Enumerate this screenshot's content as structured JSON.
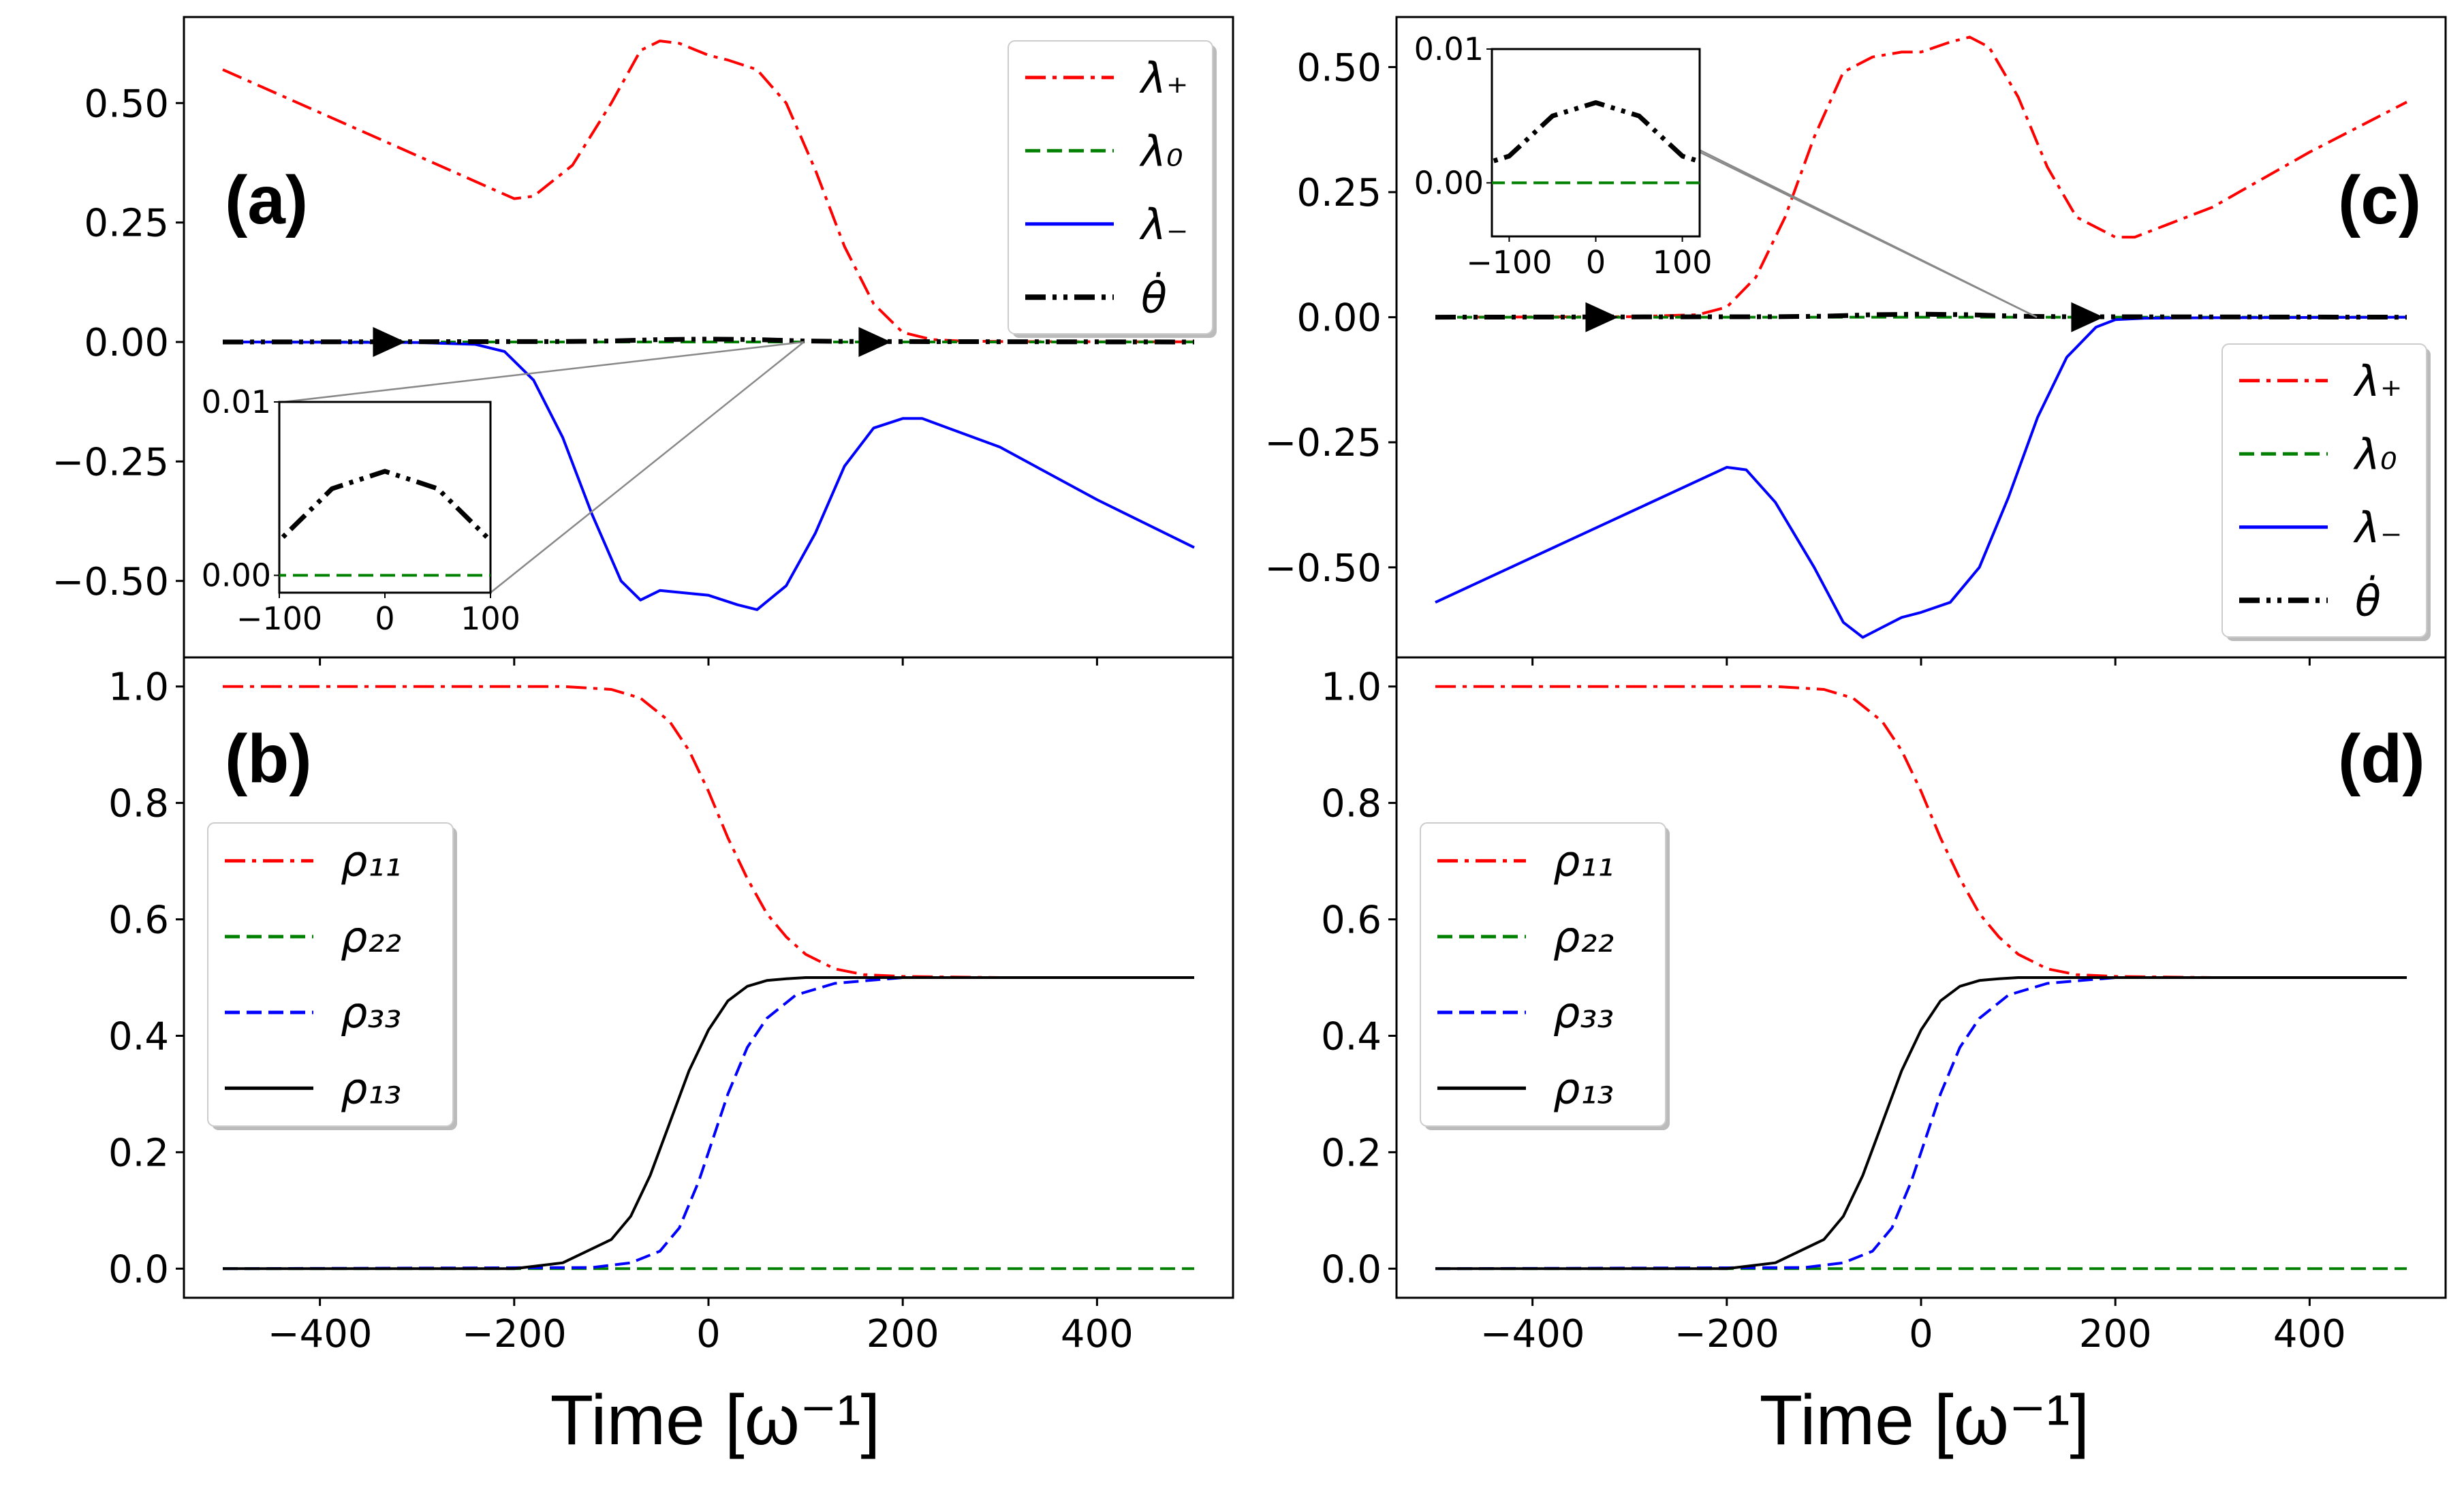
{
  "panels": {
    "a": {
      "label": "(a)"
    },
    "b": {
      "label": "(b)"
    },
    "c": {
      "label": "(c)"
    },
    "d": {
      "label": "(d)"
    }
  },
  "xlabel": "Time [ω⁻¹]",
  "colors": {
    "red": "#ff0000",
    "green": "#008000",
    "blue": "#0000ff",
    "black": "#000000"
  },
  "chart_data": [
    {
      "id": "a",
      "type": "line",
      "xlim": [
        -540,
        540
      ],
      "ylim": [
        -0.66,
        0.68
      ],
      "yticks": [
        "0.50",
        "0.25",
        "0.00",
        "−0.25",
        "−0.50"
      ],
      "ytick_values": [
        0.5,
        0.25,
        0,
        -0.25,
        -0.5
      ],
      "xticks": [
        -400,
        -200,
        0,
        200,
        400
      ],
      "legend": {
        "placement": "top-right"
      },
      "series": [
        {
          "name": "λ₊",
          "style": "dashdot",
          "color": "#ff0000",
          "x": [
            -500,
            -400,
            -300,
            -200,
            -180,
            -140,
            -100,
            -70,
            -50,
            -30,
            0,
            20,
            50,
            80,
            110,
            140,
            170,
            200,
            230,
            260,
            300,
            400,
            500
          ],
          "y": [
            0.57,
            0.48,
            0.39,
            0.3,
            0.305,
            0.37,
            0.5,
            0.61,
            0.63,
            0.625,
            0.6,
            0.59,
            0.57,
            0.5,
            0.36,
            0.2,
            0.08,
            0.02,
            0.005,
            0.002,
            0.001,
            0.0005,
            0.0003
          ]
        },
        {
          "name": "λ₀",
          "style": "dashed",
          "color": "#008000",
          "x": [
            -500,
            500
          ],
          "y": [
            0,
            0
          ]
        },
        {
          "name": "λ₋",
          "style": "solid",
          "color": "#0000ff",
          "x": [
            -500,
            -300,
            -240,
            -210,
            -180,
            -150,
            -120,
            -90,
            -70,
            -50,
            0,
            30,
            50,
            80,
            110,
            140,
            170,
            200,
            220,
            300,
            400,
            500
          ],
          "y": [
            0,
            -0.001,
            -0.005,
            -0.02,
            -0.08,
            -0.2,
            -0.36,
            -0.5,
            -0.54,
            -0.52,
            -0.53,
            -0.55,
            -0.56,
            -0.51,
            -0.4,
            -0.26,
            -0.18,
            -0.16,
            -0.16,
            -0.22,
            -0.33,
            -0.43
          ]
        },
        {
          "name": "θ̇",
          "style": "dashdotdot",
          "color": "#000000",
          "x": [
            -500,
            -150,
            -100,
            -50,
            0,
            50,
            100,
            150,
            500
          ],
          "y": [
            0,
            0.001,
            0.002,
            0.005,
            0.006,
            0.005,
            0.002,
            0.001,
            0
          ]
        }
      ],
      "arrows_x": [
        -330,
        170
      ],
      "inset": {
        "xlim": [
          -100,
          100
        ],
        "ylim": [
          -0.001,
          0.01
        ],
        "xticks": [
          "−100",
          "0",
          "100"
        ],
        "yticks": [
          "0.01",
          "0.00"
        ],
        "ytick_values": [
          0.01,
          0
        ]
      }
    },
    {
      "id": "b",
      "type": "line",
      "xlim": [
        -540,
        540
      ],
      "ylim": [
        -0.05,
        1.05
      ],
      "yticks": [
        "1.0",
        "0.8",
        "0.6",
        "0.4",
        "0.2",
        "0.0"
      ],
      "ytick_values": [
        1.0,
        0.8,
        0.6,
        0.4,
        0.2,
        0.0
      ],
      "xticks": [
        "−400",
        "−200",
        "0",
        "200",
        "400"
      ],
      "xtick_values": [
        -400,
        -200,
        0,
        200,
        400
      ],
      "legend": {
        "placement": "center-left"
      },
      "series": [
        {
          "name": "ρ₁₁",
          "style": "dashdot",
          "color": "#ff0000",
          "x": [
            -500,
            -150,
            -100,
            -70,
            -40,
            -20,
            0,
            20,
            40,
            60,
            80,
            100,
            130,
            160,
            200,
            300,
            500
          ],
          "y": [
            1.0,
            1.0,
            0.995,
            0.98,
            0.94,
            0.89,
            0.82,
            0.74,
            0.67,
            0.61,
            0.57,
            0.54,
            0.515,
            0.505,
            0.502,
            0.5,
            0.5
          ]
        },
        {
          "name": "ρ₂₂",
          "style": "dashed",
          "color": "#008000",
          "x": [
            -500,
            500
          ],
          "y": [
            0,
            0
          ]
        },
        {
          "name": "ρ₃₃",
          "style": "dashed",
          "color": "#0000ff",
          "x": [
            -500,
            -120,
            -80,
            -50,
            -30,
            -10,
            0,
            20,
            40,
            60,
            90,
            130,
            200,
            300,
            500
          ],
          "y": [
            0,
            0.002,
            0.01,
            0.03,
            0.07,
            0.15,
            0.2,
            0.3,
            0.38,
            0.43,
            0.47,
            0.49,
            0.5,
            0.5,
            0.5
          ]
        },
        {
          "name": "ρ₁₃",
          "style": "solid",
          "color": "#000000",
          "x": [
            -500,
            -200,
            -150,
            -100,
            -80,
            -60,
            -40,
            -20,
            0,
            20,
            40,
            60,
            80,
            100,
            150,
            200,
            300,
            500
          ],
          "y": [
            0,
            0,
            0.01,
            0.05,
            0.09,
            0.16,
            0.25,
            0.34,
            0.41,
            0.46,
            0.485,
            0.495,
            0.498,
            0.5,
            0.5,
            0.5,
            0.5,
            0.5
          ]
        }
      ]
    },
    {
      "id": "c",
      "type": "line",
      "xlim": [
        -540,
        540
      ],
      "ylim": [
        -0.68,
        0.6
      ],
      "yticks": [
        "0.50",
        "0.25",
        "0.00",
        "−0.25",
        "−0.50"
      ],
      "ytick_values": [
        0.5,
        0.25,
        0,
        -0.25,
        -0.5
      ],
      "xticks": [
        -400,
        -200,
        0,
        200,
        400
      ],
      "legend": {
        "placement": "bottom-right"
      },
      "series": [
        {
          "name": "λ₊",
          "style": "dashdot",
          "color": "#ff0000",
          "x": [
            -500,
            -300,
            -230,
            -200,
            -170,
            -140,
            -110,
            -80,
            -50,
            -20,
            0,
            30,
            50,
            70,
            100,
            130,
            160,
            200,
            220,
            300,
            400,
            500
          ],
          "y": [
            0,
            0.001,
            0.005,
            0.02,
            0.08,
            0.2,
            0.36,
            0.49,
            0.52,
            0.53,
            0.53,
            0.55,
            0.56,
            0.54,
            0.44,
            0.3,
            0.2,
            0.16,
            0.16,
            0.22,
            0.33,
            0.43
          ]
        },
        {
          "name": "λ₀",
          "style": "dashed",
          "color": "#008000",
          "x": [
            -500,
            500
          ],
          "y": [
            0,
            0
          ]
        },
        {
          "name": "λ₋",
          "style": "solid",
          "color": "#0000ff",
          "x": [
            -500,
            -400,
            -300,
            -200,
            -180,
            -150,
            -110,
            -80,
            -60,
            -40,
            -20,
            0,
            30,
            60,
            90,
            120,
            150,
            180,
            200,
            230,
            300,
            500
          ],
          "y": [
            -0.57,
            -0.48,
            -0.39,
            -0.3,
            -0.305,
            -0.37,
            -0.5,
            -0.61,
            -0.64,
            -0.62,
            -0.6,
            -0.59,
            -0.57,
            -0.5,
            -0.36,
            -0.2,
            -0.08,
            -0.02,
            -0.005,
            -0.002,
            -0.001,
            0
          ]
        },
        {
          "name": "θ̇",
          "style": "dashdotdot",
          "color": "#000000",
          "x": [
            -500,
            -150,
            -100,
            -50,
            0,
            50,
            100,
            150,
            500
          ],
          "y": [
            0,
            0.001,
            0.002,
            0.005,
            0.006,
            0.005,
            0.002,
            0.001,
            0
          ]
        }
      ],
      "arrows_x": [
        -330,
        170
      ],
      "inset": {
        "xlim": [
          -120,
          120
        ],
        "ylim": [
          -0.004,
          0.01
        ],
        "xticks": [
          "−100",
          "0",
          "100"
        ],
        "yticks": [
          "0.01",
          "0.00"
        ],
        "ytick_values": [
          0.01,
          0
        ]
      }
    },
    {
      "id": "d",
      "type": "line",
      "xlim": [
        -540,
        540
      ],
      "ylim": [
        -0.05,
        1.05
      ],
      "yticks": [
        "1.0",
        "0.8",
        "0.6",
        "0.4",
        "0.2",
        "0.0"
      ],
      "ytick_values": [
        1.0,
        0.8,
        0.6,
        0.4,
        0.2,
        0.0
      ],
      "xticks": [
        "−400",
        "−200",
        "0",
        "200",
        "400"
      ],
      "xtick_values": [
        -400,
        -200,
        0,
        200,
        400
      ],
      "legend": {
        "placement": "center-left"
      },
      "series": [
        {
          "name": "ρ₁₁",
          "style": "dashdot",
          "color": "#ff0000",
          "x": [
            -500,
            -150,
            -100,
            -70,
            -40,
            -20,
            0,
            20,
            40,
            60,
            80,
            100,
            130,
            160,
            200,
            300,
            500
          ],
          "y": [
            1.0,
            1.0,
            0.995,
            0.98,
            0.94,
            0.89,
            0.82,
            0.74,
            0.67,
            0.61,
            0.57,
            0.54,
            0.515,
            0.505,
            0.502,
            0.5,
            0.5
          ]
        },
        {
          "name": "ρ₂₂",
          "style": "dashed",
          "color": "#008000",
          "x": [
            -500,
            500
          ],
          "y": [
            0,
            0
          ]
        },
        {
          "name": "ρ₃₃",
          "style": "dashed",
          "color": "#0000ff",
          "x": [
            -500,
            -120,
            -80,
            -50,
            -30,
            -10,
            0,
            20,
            40,
            60,
            90,
            130,
            200,
            300,
            500
          ],
          "y": [
            0,
            0.002,
            0.01,
            0.03,
            0.07,
            0.15,
            0.2,
            0.3,
            0.38,
            0.43,
            0.47,
            0.49,
            0.5,
            0.5,
            0.5
          ]
        },
        {
          "name": "ρ₁₃",
          "style": "solid",
          "color": "#000000",
          "x": [
            -500,
            -200,
            -150,
            -100,
            -80,
            -60,
            -40,
            -20,
            0,
            20,
            40,
            60,
            80,
            100,
            150,
            200,
            300,
            500
          ],
          "y": [
            0,
            0,
            0.01,
            0.05,
            0.09,
            0.16,
            0.25,
            0.34,
            0.41,
            0.46,
            0.485,
            0.495,
            0.498,
            0.5,
            0.5,
            0.5,
            0.5,
            0.5
          ]
        }
      ]
    }
  ]
}
